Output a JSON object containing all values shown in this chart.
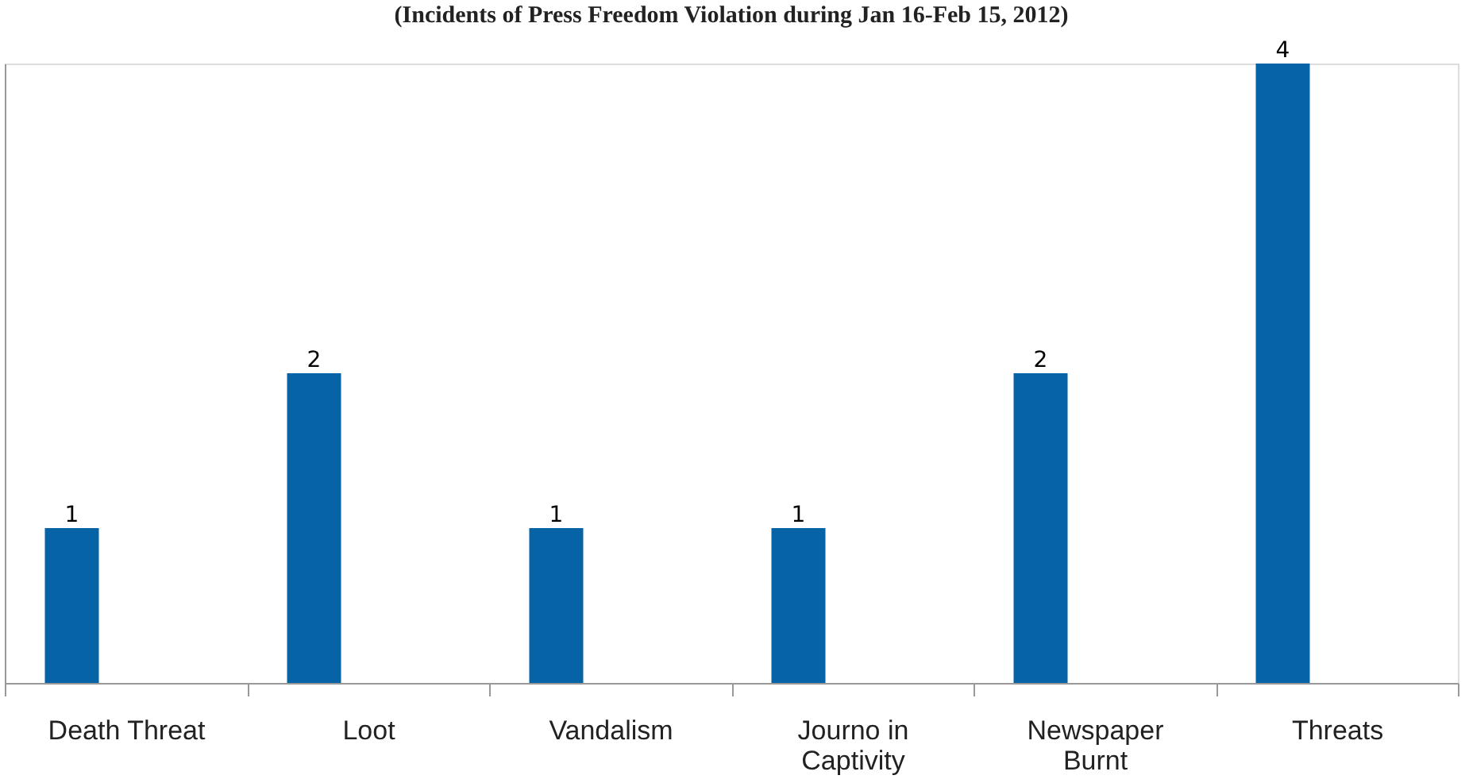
{
  "chart_data": {
    "type": "bar",
    "title": "(Incidents of Press Freedom Violation during Jan 16-Feb 15, 2012)",
    "categories": [
      "Death Threat",
      "Loot",
      "Vandalism",
      "Journo in Captivity",
      "Newspaper Burnt",
      "Threats"
    ],
    "values": [
      1,
      2,
      1,
      1,
      2,
      4
    ],
    "color": "#0563a6",
    "data_labels": true,
    "grid": false
  }
}
